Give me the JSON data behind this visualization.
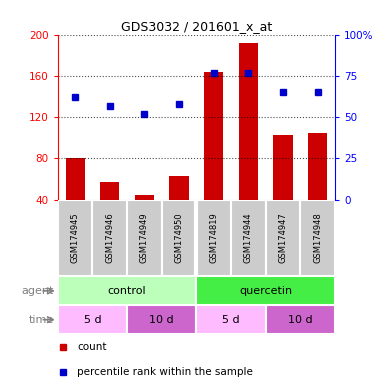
{
  "title": "GDS3032 / 201601_x_at",
  "samples": [
    "GSM174945",
    "GSM174946",
    "GSM174949",
    "GSM174950",
    "GSM174819",
    "GSM174944",
    "GSM174947",
    "GSM174948"
  ],
  "count_values": [
    80,
    57,
    45,
    63,
    164,
    192,
    103,
    105
  ],
  "percentile_values": [
    62,
    57,
    52,
    58,
    77,
    77,
    65,
    65
  ],
  "ylim_left": [
    40,
    200
  ],
  "ylim_right": [
    0,
    100
  ],
  "yticks_left": [
    40,
    80,
    120,
    160,
    200
  ],
  "yticks_right": [
    0,
    25,
    50,
    75,
    100
  ],
  "bar_color": "#cc0000",
  "dot_color": "#0000cc",
  "agent_groups": [
    {
      "label": "control",
      "start": 0,
      "end": 4,
      "color": "#bbffbb"
    },
    {
      "label": "quercetin",
      "start": 4,
      "end": 8,
      "color": "#44ee44"
    }
  ],
  "time_groups": [
    {
      "label": "5 d",
      "start": 0,
      "end": 2,
      "color": "#ffbbff"
    },
    {
      "label": "10 d",
      "start": 2,
      "end": 4,
      "color": "#cc66cc"
    },
    {
      "label": "5 d",
      "start": 4,
      "end": 6,
      "color": "#ffbbff"
    },
    {
      "label": "10 d",
      "start": 6,
      "end": 8,
      "color": "#cc66cc"
    }
  ],
  "legend_items": [
    {
      "label": "count",
      "color": "#cc0000",
      "marker": "s"
    },
    {
      "label": "percentile rank within the sample",
      "color": "#0000cc",
      "marker": "s"
    }
  ],
  "background_color": "#ffffff",
  "sample_bg_color": "#cccccc",
  "fig_width": 3.85,
  "fig_height": 3.84,
  "dpi": 100
}
